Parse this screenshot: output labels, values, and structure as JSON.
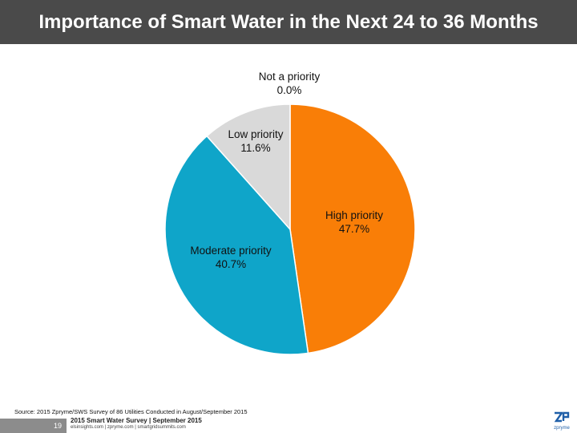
{
  "header": {
    "title": "Importance of Smart Water in the Next 24 to 36 Months"
  },
  "chart_data": {
    "type": "pie",
    "title": "Importance of Smart Water in the Next 24 to 36 Months",
    "slices": [
      {
        "label": "High priority",
        "value": 47.7,
        "display": "47.7%",
        "color": "#f97e07"
      },
      {
        "label": "Moderate priority",
        "value": 40.7,
        "display": "40.7%",
        "color": "#0fa5c9"
      },
      {
        "label": "Low priority",
        "value": 11.6,
        "display": "11.6%",
        "color": "#d9d9d9"
      },
      {
        "label": "Not a priority",
        "value": 0.0,
        "display": "0.0%",
        "color": "#bfbfbf"
      }
    ],
    "start_angle": "12 o'clock",
    "direction": "clockwise"
  },
  "source": "Source: 2015 Zpryme/SWS Survey of 86 Utilities Conducted in August/September 2015",
  "footer": {
    "page_number": "19",
    "survey_title": "2015 Smart Water Survey | September 2015",
    "sites": "elsinsights.com | zpryme.com | smartgridsummits.com",
    "logo_text": "zpryme"
  }
}
